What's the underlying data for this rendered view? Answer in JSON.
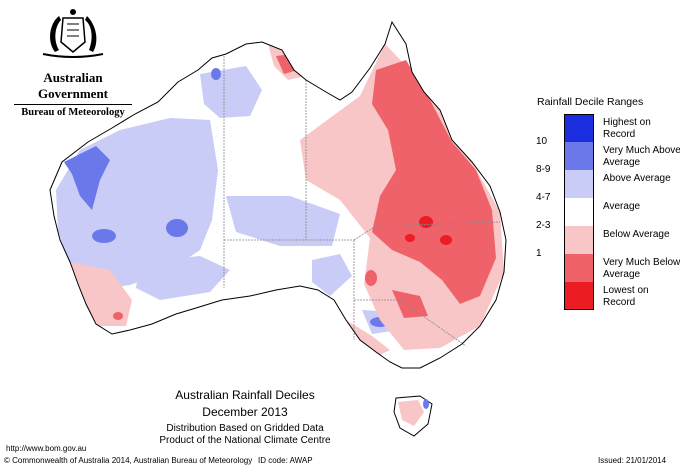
{
  "header": {
    "government": "Australian Government",
    "bureau": "Bureau of Meteorology"
  },
  "legend": {
    "title": "Rainfall Decile Ranges",
    "items": [
      {
        "range": "",
        "label": "Highest on Record",
        "color": "#1a2ee0"
      },
      {
        "range": "10",
        "label": "Very Much Above Average",
        "color": "#6b78ea"
      },
      {
        "range": "8-9",
        "label": "Above Average",
        "color": "#c8ccf6"
      },
      {
        "range": "4-7",
        "label": "Average",
        "color": "#ffffff"
      },
      {
        "range": "2-3",
        "label": "Below Average",
        "color": "#f9c6c8"
      },
      {
        "range": "1",
        "label": "Very Much Below Average",
        "color": "#f0626a"
      },
      {
        "range": "",
        "label": "Lowest on Record",
        "color": "#ec1c24"
      }
    ]
  },
  "caption": {
    "title": "Australian Rainfall Deciles",
    "period": "December 2013",
    "line1": "Distribution Based on Gridded Data",
    "line2": "Product of the National Climate Centre"
  },
  "footer": {
    "url": "http://www.bom.gov.au",
    "copyright": "© Commonwealth of Australia 2014, Australian Bureau of Meteorology",
    "id_code": "ID code: AWAP",
    "issued": "Issued: 21/01/2014"
  },
  "colors": {
    "land_outline": "#000000",
    "state_border": "#888888"
  }
}
